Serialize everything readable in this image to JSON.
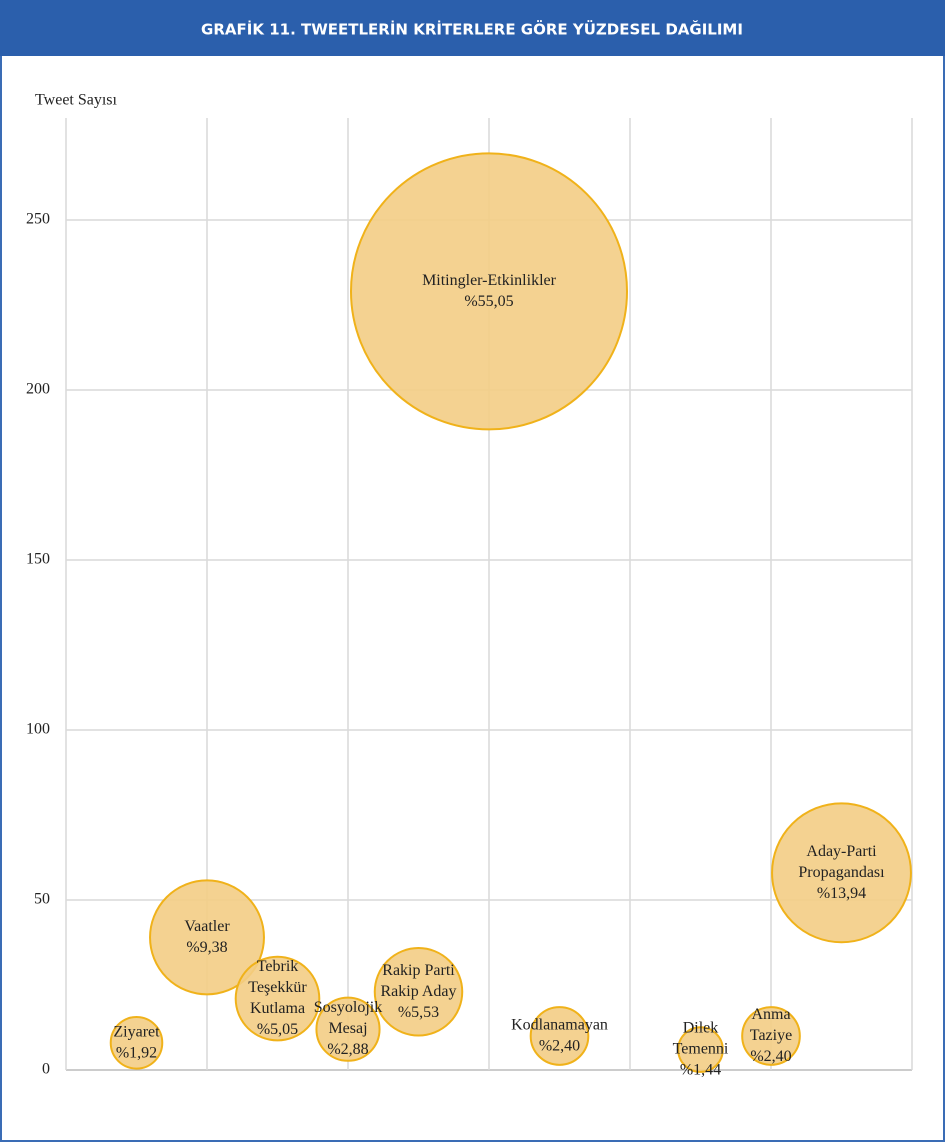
{
  "chart_data": {
    "type": "bubble",
    "title": "GRAFİK 11. TWEETLERİN KRİTERLERE GÖRE YÜZDESEL DAĞILIMI",
    "ylabel": "Tweet Sayısı",
    "names": [
      [
        "Ziyaret"
      ],
      [
        "Vaatler"
      ],
      [
        "Tebrik",
        "Teşekkür",
        "Kutlama"
      ],
      [
        "Sosyolojik",
        "Mesaj"
      ],
      [
        "Rakip Parti",
        "Rakip Aday"
      ],
      [
        "Mitingler-Etkinlikler"
      ],
      [
        "Kodlanamayan"
      ],
      [
        "Dilek",
        "Temenni"
      ],
      [
        "Anma",
        "Taziye"
      ],
      [
        "Aday-Parti",
        "Propagandası"
      ]
    ],
    "x": [
      1,
      2,
      3,
      4,
      5,
      6,
      7,
      9,
      10,
      11
    ],
    "values": [
      8,
      39,
      21,
      12,
      23,
      229,
      10,
      6,
      10,
      58
    ],
    "sizes": [
      1.92,
      9.38,
      5.05,
      2.88,
      5.53,
      55.05,
      2.4,
      1.44,
      2.4,
      13.94
    ],
    "value_labels": [
      "%1,92",
      "%9,38",
      "%5,05",
      "%2,88",
      "%5,53",
      "%55,05",
      "%2,40",
      "%1,44",
      "%2,40",
      "%13,94"
    ],
    "color": "#f3cd85",
    "edge_color": "#f0b21a",
    "xlim": [
      0,
      12
    ],
    "xticks": [
      0,
      2,
      4,
      6,
      8,
      10,
      12
    ],
    "ylim": [
      0,
      280
    ],
    "yticks": [
      0,
      50,
      100,
      150,
      200,
      250
    ],
    "grid": true
  }
}
